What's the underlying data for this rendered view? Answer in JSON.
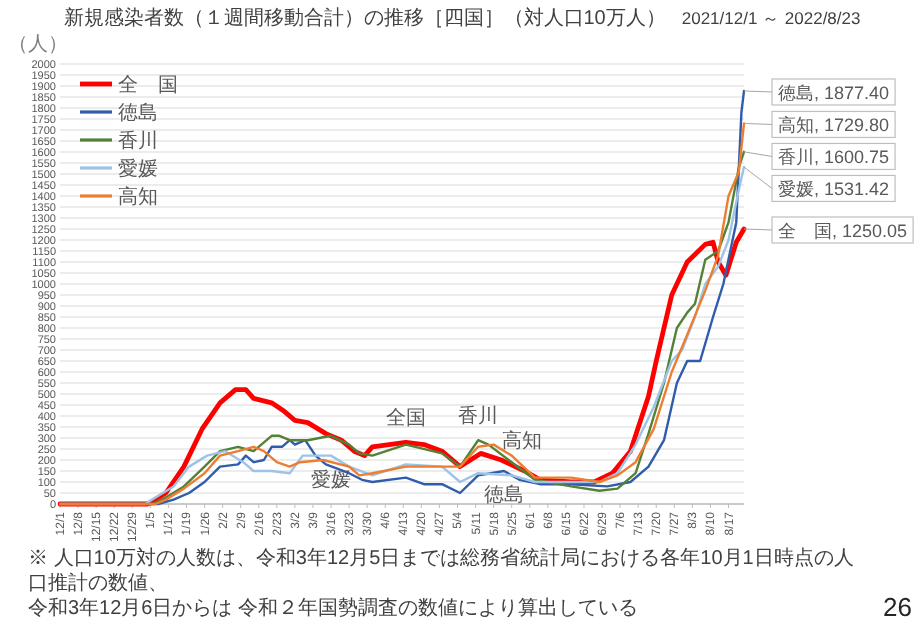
{
  "chart_data": {
    "type": "line",
    "title": "新規感染者数（１週間移動合計）の推移［四国］（対人口10万人）",
    "subtitle": "2021/12/1 ～ 2022/8/23",
    "ylabel": "（人）",
    "xlim": [
      "2021-12-01",
      "2022-08-23"
    ],
    "ylim": [
      0,
      2000
    ],
    "yticks": [
      0,
      50,
      100,
      150,
      200,
      250,
      300,
      350,
      400,
      450,
      500,
      550,
      600,
      650,
      700,
      750,
      800,
      850,
      900,
      950,
      1000,
      1050,
      1100,
      1150,
      1200,
      1250,
      1300,
      1350,
      1400,
      1450,
      1500,
      1550,
      1600,
      1650,
      1700,
      1750,
      1800,
      1850,
      1900,
      1950,
      2000
    ],
    "xticks": [
      {
        "value": "2021-12-01",
        "label": "12/1"
      },
      {
        "value": "2021-12-08",
        "label": "12/8"
      },
      {
        "value": "2021-12-15",
        "label": "12/15"
      },
      {
        "value": "2021-12-22",
        "label": "12/22"
      },
      {
        "value": "2021-12-29",
        "label": "12/29"
      },
      {
        "value": "2022-01-05",
        "label": "1/5"
      },
      {
        "value": "2022-01-12",
        "label": "1/12"
      },
      {
        "value": "2022-01-19",
        "label": "1/19"
      },
      {
        "value": "2022-01-26",
        "label": "1/26"
      },
      {
        "value": "2022-02-02",
        "label": "2/2"
      },
      {
        "value": "2022-02-09",
        "label": "2/9"
      },
      {
        "value": "2022-02-16",
        "label": "2/16"
      },
      {
        "value": "2022-02-23",
        "label": "2/23"
      },
      {
        "value": "2022-03-02",
        "label": "3/2"
      },
      {
        "value": "2022-03-09",
        "label": "3/9"
      },
      {
        "value": "2022-03-16",
        "label": "3/16"
      },
      {
        "value": "2022-03-23",
        "label": "3/23"
      },
      {
        "value": "2022-03-30",
        "label": "3/30"
      },
      {
        "value": "2022-04-06",
        "label": "4/6"
      },
      {
        "value": "2022-04-13",
        "label": "4/13"
      },
      {
        "value": "2022-04-20",
        "label": "4/20"
      },
      {
        "value": "2022-04-27",
        "label": "4/27"
      },
      {
        "value": "2022-05-04",
        "label": "5/4"
      },
      {
        "value": "2022-05-11",
        "label": "5/11"
      },
      {
        "value": "2022-05-18",
        "label": "5/18"
      },
      {
        "value": "2022-05-25",
        "label": "5/25"
      },
      {
        "value": "2022-06-01",
        "label": "6/1"
      },
      {
        "value": "2022-06-08",
        "label": "6/8"
      },
      {
        "value": "2022-06-15",
        "label": "6/15"
      },
      {
        "value": "2022-06-22",
        "label": "6/22"
      },
      {
        "value": "2022-06-29",
        "label": "6/29"
      },
      {
        "value": "2022-07-06",
        "label": "7/6"
      },
      {
        "value": "2022-07-13",
        "label": "7/13"
      },
      {
        "value": "2022-07-20",
        "label": "7/20"
      },
      {
        "value": "2022-07-27",
        "label": "7/27"
      },
      {
        "value": "2022-08-03",
        "label": "8/3"
      },
      {
        "value": "2022-08-10",
        "label": "8/10"
      },
      {
        "value": "2022-08-17",
        "label": "8/17"
      }
    ],
    "grid": "y",
    "legend": "top left",
    "series": [
      {
        "name": "全　国",
        "color": "#ff0000",
        "x": [
          "2021-12-01",
          "2022-01-04",
          "2022-01-11",
          "2022-01-18",
          "2022-01-25",
          "2022-02-01",
          "2022-02-07",
          "2022-02-11",
          "2022-02-14",
          "2022-02-21",
          "2022-02-26",
          "2022-03-02",
          "2022-03-07",
          "2022-03-14",
          "2022-03-20",
          "2022-03-25",
          "2022-03-29",
          "2022-04-01",
          "2022-04-14",
          "2022-04-21",
          "2022-04-28",
          "2022-05-05",
          "2022-05-13",
          "2022-05-21",
          "2022-05-30",
          "2022-06-05",
          "2022-06-17",
          "2022-06-26",
          "2022-07-03",
          "2022-07-10",
          "2022-07-17",
          "2022-07-20",
          "2022-07-26",
          "2022-08-01",
          "2022-08-08",
          "2022-08-11",
          "2022-08-13",
          "2022-08-16",
          "2022-08-20",
          "2022-08-23"
        ],
        "values": [
          0,
          0,
          50,
          170,
          340,
          460,
          520,
          520,
          480,
          460,
          420,
          380,
          370,
          320,
          290,
          240,
          220,
          260,
          280,
          270,
          240,
          170,
          230,
          200,
          150,
          110,
          100,
          100,
          140,
          240,
          490,
          650,
          950,
          1100,
          1180,
          1190,
          1100,
          1040,
          1190,
          1250.05
        ]
      },
      {
        "name": "徳島",
        "color": "#2f5cad",
        "x": [
          "2021-12-01",
          "2022-01-08",
          "2022-01-14",
          "2022-01-20",
          "2022-01-26",
          "2022-02-01",
          "2022-02-08",
          "2022-02-11",
          "2022-02-14",
          "2022-02-18",
          "2022-02-21",
          "2022-02-25",
          "2022-02-28",
          "2022-03-02",
          "2022-03-06",
          "2022-03-10",
          "2022-03-14",
          "2022-03-23",
          "2022-03-28",
          "2022-04-01",
          "2022-04-14",
          "2022-04-21",
          "2022-04-28",
          "2022-05-05",
          "2022-05-12",
          "2022-05-17",
          "2022-05-22",
          "2022-05-28",
          "2022-06-05",
          "2022-06-17",
          "2022-07-01",
          "2022-07-10",
          "2022-07-17",
          "2022-07-23",
          "2022-07-28",
          "2022-08-01",
          "2022-08-06",
          "2022-08-11",
          "2022-08-15",
          "2022-08-20",
          "2022-08-22",
          "2022-08-23"
        ],
        "values": [
          0,
          0,
          20,
          50,
          100,
          170,
          180,
          220,
          190,
          200,
          260,
          260,
          290,
          270,
          290,
          220,
          180,
          140,
          110,
          100,
          120,
          90,
          90,
          50,
          130,
          140,
          150,
          110,
          90,
          90,
          80,
          100,
          170,
          290,
          550,
          650,
          650,
          850,
          1000,
          1280,
          1780,
          1877.4
        ]
      },
      {
        "name": "香川",
        "color": "#538135",
        "x": [
          "2021-12-01",
          "2022-01-06",
          "2022-01-11",
          "2022-01-18",
          "2022-01-26",
          "2022-02-01",
          "2022-02-08",
          "2022-02-14",
          "2022-02-21",
          "2022-02-24",
          "2022-02-28",
          "2022-03-07",
          "2022-03-16",
          "2022-03-23",
          "2022-03-27",
          "2022-04-01",
          "2022-04-14",
          "2022-04-28",
          "2022-05-05",
          "2022-05-12",
          "2022-05-16",
          "2022-05-25",
          "2022-06-03",
          "2022-06-17",
          "2022-06-28",
          "2022-07-05",
          "2022-07-12",
          "2022-07-17",
          "2022-07-23",
          "2022-07-28",
          "2022-08-01",
          "2022-08-04",
          "2022-08-08",
          "2022-08-13",
          "2022-08-17",
          "2022-08-21",
          "2022-08-23"
        ],
        "values": [
          0,
          0,
          30,
          80,
          170,
          240,
          260,
          240,
          310,
          310,
          290,
          290,
          310,
          270,
          230,
          220,
          270,
          230,
          170,
          290,
          270,
          190,
          110,
          80,
          60,
          70,
          140,
          320,
          550,
          800,
          870,
          910,
          1110,
          1150,
          1280,
          1530,
          1600.75
        ]
      },
      {
        "name": "愛媛",
        "color": "#9dc3e6",
        "x": [
          "2021-12-01",
          "2022-01-03",
          "2022-01-07",
          "2022-01-14",
          "2022-01-20",
          "2022-01-27",
          "2022-02-03",
          "2022-02-10",
          "2022-02-14",
          "2022-02-21",
          "2022-02-28",
          "2022-03-05",
          "2022-03-16",
          "2022-03-23",
          "2022-04-01",
          "2022-04-14",
          "2022-04-28",
          "2022-05-05",
          "2022-05-12",
          "2022-05-25",
          "2022-06-03",
          "2022-06-28",
          "2022-07-05",
          "2022-07-12",
          "2022-07-19",
          "2022-07-26",
          "2022-07-30",
          "2022-08-04",
          "2022-08-08",
          "2022-08-13",
          "2022-08-17",
          "2022-08-21",
          "2022-08-23"
        ],
        "values": [
          0,
          0,
          30,
          80,
          170,
          220,
          240,
          190,
          150,
          150,
          140,
          220,
          220,
          170,
          130,
          180,
          170,
          100,
          140,
          130,
          100,
          100,
          140,
          270,
          440,
          650,
          700,
          850,
          1000,
          1080,
          1200,
          1430,
          1531.42
        ]
      },
      {
        "name": "高知",
        "color": "#ed7d31",
        "x": [
          "2021-12-01",
          "2022-01-07",
          "2022-01-11",
          "2022-01-18",
          "2022-01-26",
          "2022-02-01",
          "2022-02-08",
          "2022-02-14",
          "2022-02-18",
          "2022-02-23",
          "2022-02-28",
          "2022-03-04",
          "2022-03-13",
          "2022-03-23",
          "2022-03-27",
          "2022-04-01",
          "2022-04-14",
          "2022-05-05",
          "2022-05-12",
          "2022-05-18",
          "2022-05-25",
          "2022-06-03",
          "2022-06-17",
          "2022-06-28",
          "2022-07-05",
          "2022-07-12",
          "2022-07-19",
          "2022-07-26",
          "2022-08-01",
          "2022-08-08",
          "2022-08-13",
          "2022-08-17",
          "2022-08-21",
          "2022-08-23"
        ],
        "values": [
          0,
          0,
          20,
          70,
          140,
          220,
          240,
          260,
          240,
          190,
          170,
          190,
          200,
          170,
          130,
          140,
          170,
          170,
          260,
          270,
          220,
          120,
          120,
          100,
          130,
          190,
          340,
          600,
          770,
          970,
          1130,
          1400,
          1510,
          1729.8
        ]
      }
    ],
    "annotations": [
      {
        "text": "全国",
        "x": "2022-04-14",
        "y": 280
      },
      {
        "text": "香川",
        "x": "2022-05-12",
        "y": 290
      },
      {
        "text": "高知",
        "x": "2022-05-29",
        "y": 176
      },
      {
        "text": "愛媛",
        "x": "2022-03-16",
        "y": 220
      },
      {
        "text": "徳島",
        "x": "2022-05-22",
        "y": 150
      },
      {
        "text": "徳島, 1877.40",
        "x": "2022-08-23",
        "y": 1877.4
      },
      {
        "text": "高知, 1729.80",
        "x": "2022-08-23",
        "y": 1729.8
      },
      {
        "text": "香川, 1600.75",
        "x": "2022-08-23",
        "y": 1600.75
      },
      {
        "text": "愛媛, 1531.42",
        "x": "2022-08-23",
        "y": 1531.42
      },
      {
        "text": "全　国, 1250.05",
        "x": "2022-08-23",
        "y": 1250.05
      },
      "※ 人口10万対の人数は、令和3年12月5日までは総務省統計局における各年10月1日時点の人口推計の数値、",
      "令和3年12月6日からは 令和２年国勢調査の数値により算出している",
      "26"
    ]
  }
}
